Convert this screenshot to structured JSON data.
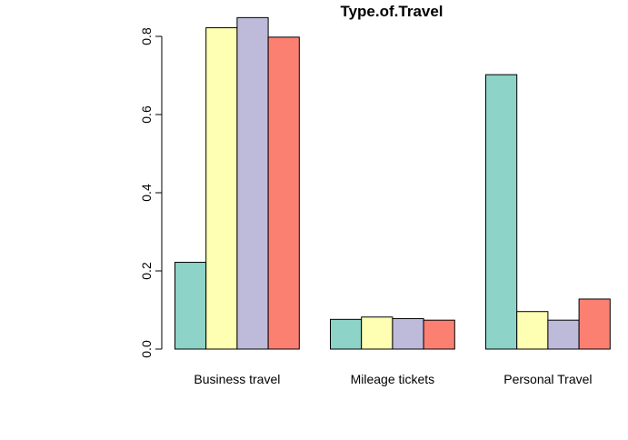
{
  "chart_data": {
    "type": "bar",
    "title": "Type.of.Travel",
    "xlabel": "",
    "ylabel": "",
    "categories": [
      "Business travel",
      "Mileage tickets",
      "Personal Travel"
    ],
    "series": [
      {
        "values": [
          0.222,
          0.076,
          0.702
        ]
      },
      {
        "values": [
          0.822,
          0.082,
          0.096
        ]
      },
      {
        "values": [
          0.848,
          0.078,
          0.074
        ]
      },
      {
        "values": [
          0.798,
          0.074,
          0.128
        ]
      }
    ],
    "colors": [
      "#8DD3C7",
      "#FFFFB3",
      "#BEBADA",
      "#FB8072"
    ],
    "ylim": [
      0,
      0.8
    ],
    "yticks": [
      0.0,
      0.2,
      0.4,
      0.6,
      0.8
    ],
    "ytick_labels": [
      "0.0",
      "0.2",
      "0.4",
      "0.6",
      "0.8"
    ],
    "grid": false,
    "legend": "none"
  }
}
